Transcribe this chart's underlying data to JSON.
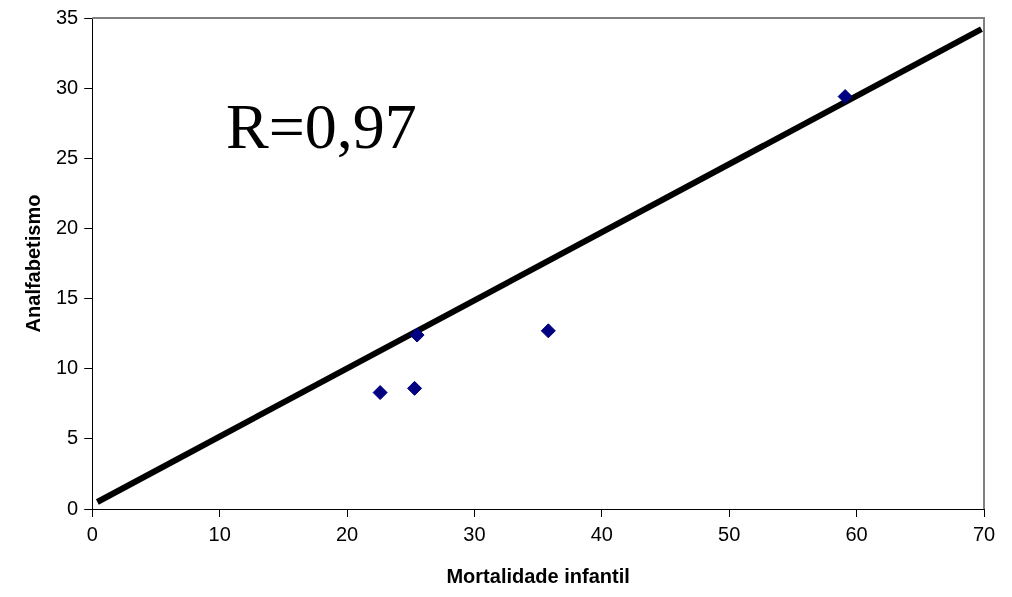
{
  "chart_data": {
    "type": "scatter",
    "xlabel": "Mortalidade infantil",
    "ylabel": "Analfabetismo",
    "annotations": [
      "R=0,97"
    ],
    "xlim": [
      0,
      70
    ],
    "xticks": [
      0,
      10,
      20,
      30,
      40,
      50,
      60,
      70
    ],
    "ylim": [
      0,
      35
    ],
    "yticks": [
      0,
      5,
      10,
      15,
      20,
      25,
      30,
      35
    ],
    "grid": false,
    "legend": false,
    "series": [
      {
        "color": "#000080",
        "marker": "diamond",
        "x": [
          22.6,
          25.3,
          25.5,
          35.8,
          59.1
        ],
        "values": [
          8.3,
          8.6,
          12.4,
          12.7,
          29.4
        ]
      },
      {
        "type": "line",
        "marker": "none",
        "color": "#000000",
        "x": [
          0.4,
          69.8
        ],
        "values": [
          0.5,
          34.2
        ]
      }
    ]
  }
}
